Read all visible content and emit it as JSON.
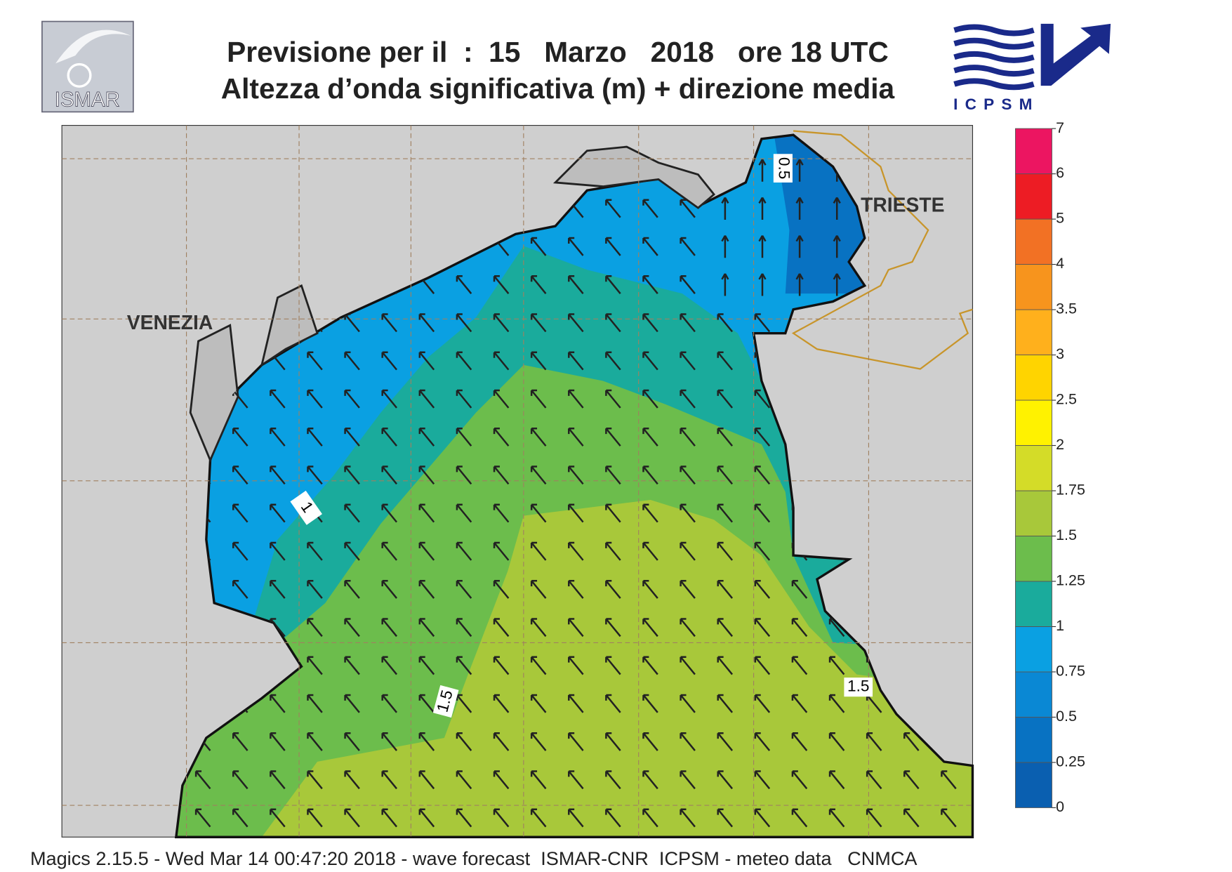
{
  "header": {
    "title": "Previsione per il  :  15   Marzo   2018   ore 18 UTC",
    "subtitle": "Altezza d’onda significativa (m) + direzione media",
    "logo_left": "ISMAR",
    "logo_right": "ICPSM"
  },
  "map": {
    "places": [
      "VENEZIA",
      "TRIESTE"
    ],
    "contour_labels": [
      0.5,
      1,
      1.5,
      1.5
    ]
  },
  "colorbar": {
    "ticks": [
      0,
      0.25,
      0.5,
      0.75,
      1,
      1.25,
      1.5,
      1.75,
      2,
      2.5,
      3,
      3.5,
      4,
      5,
      6,
      7
    ],
    "colors": [
      "#0a5fb0",
      "#0872c2",
      "#0a88d4",
      "#0aa0e2",
      "#1aab9c",
      "#6cbd4c",
      "#a8c83a",
      "#d4dc28",
      "#fff200",
      "#ffd400",
      "#ffb01c",
      "#f7941d",
      "#f27124",
      "#ed1c24",
      "#ec1561"
    ]
  },
  "footer": "Magics 2.15.5 - Wed Mar 14 00:47:20 2018 - wave forecast  ISMAR-CNR  ICPSM - meteo data   CNMCA"
}
